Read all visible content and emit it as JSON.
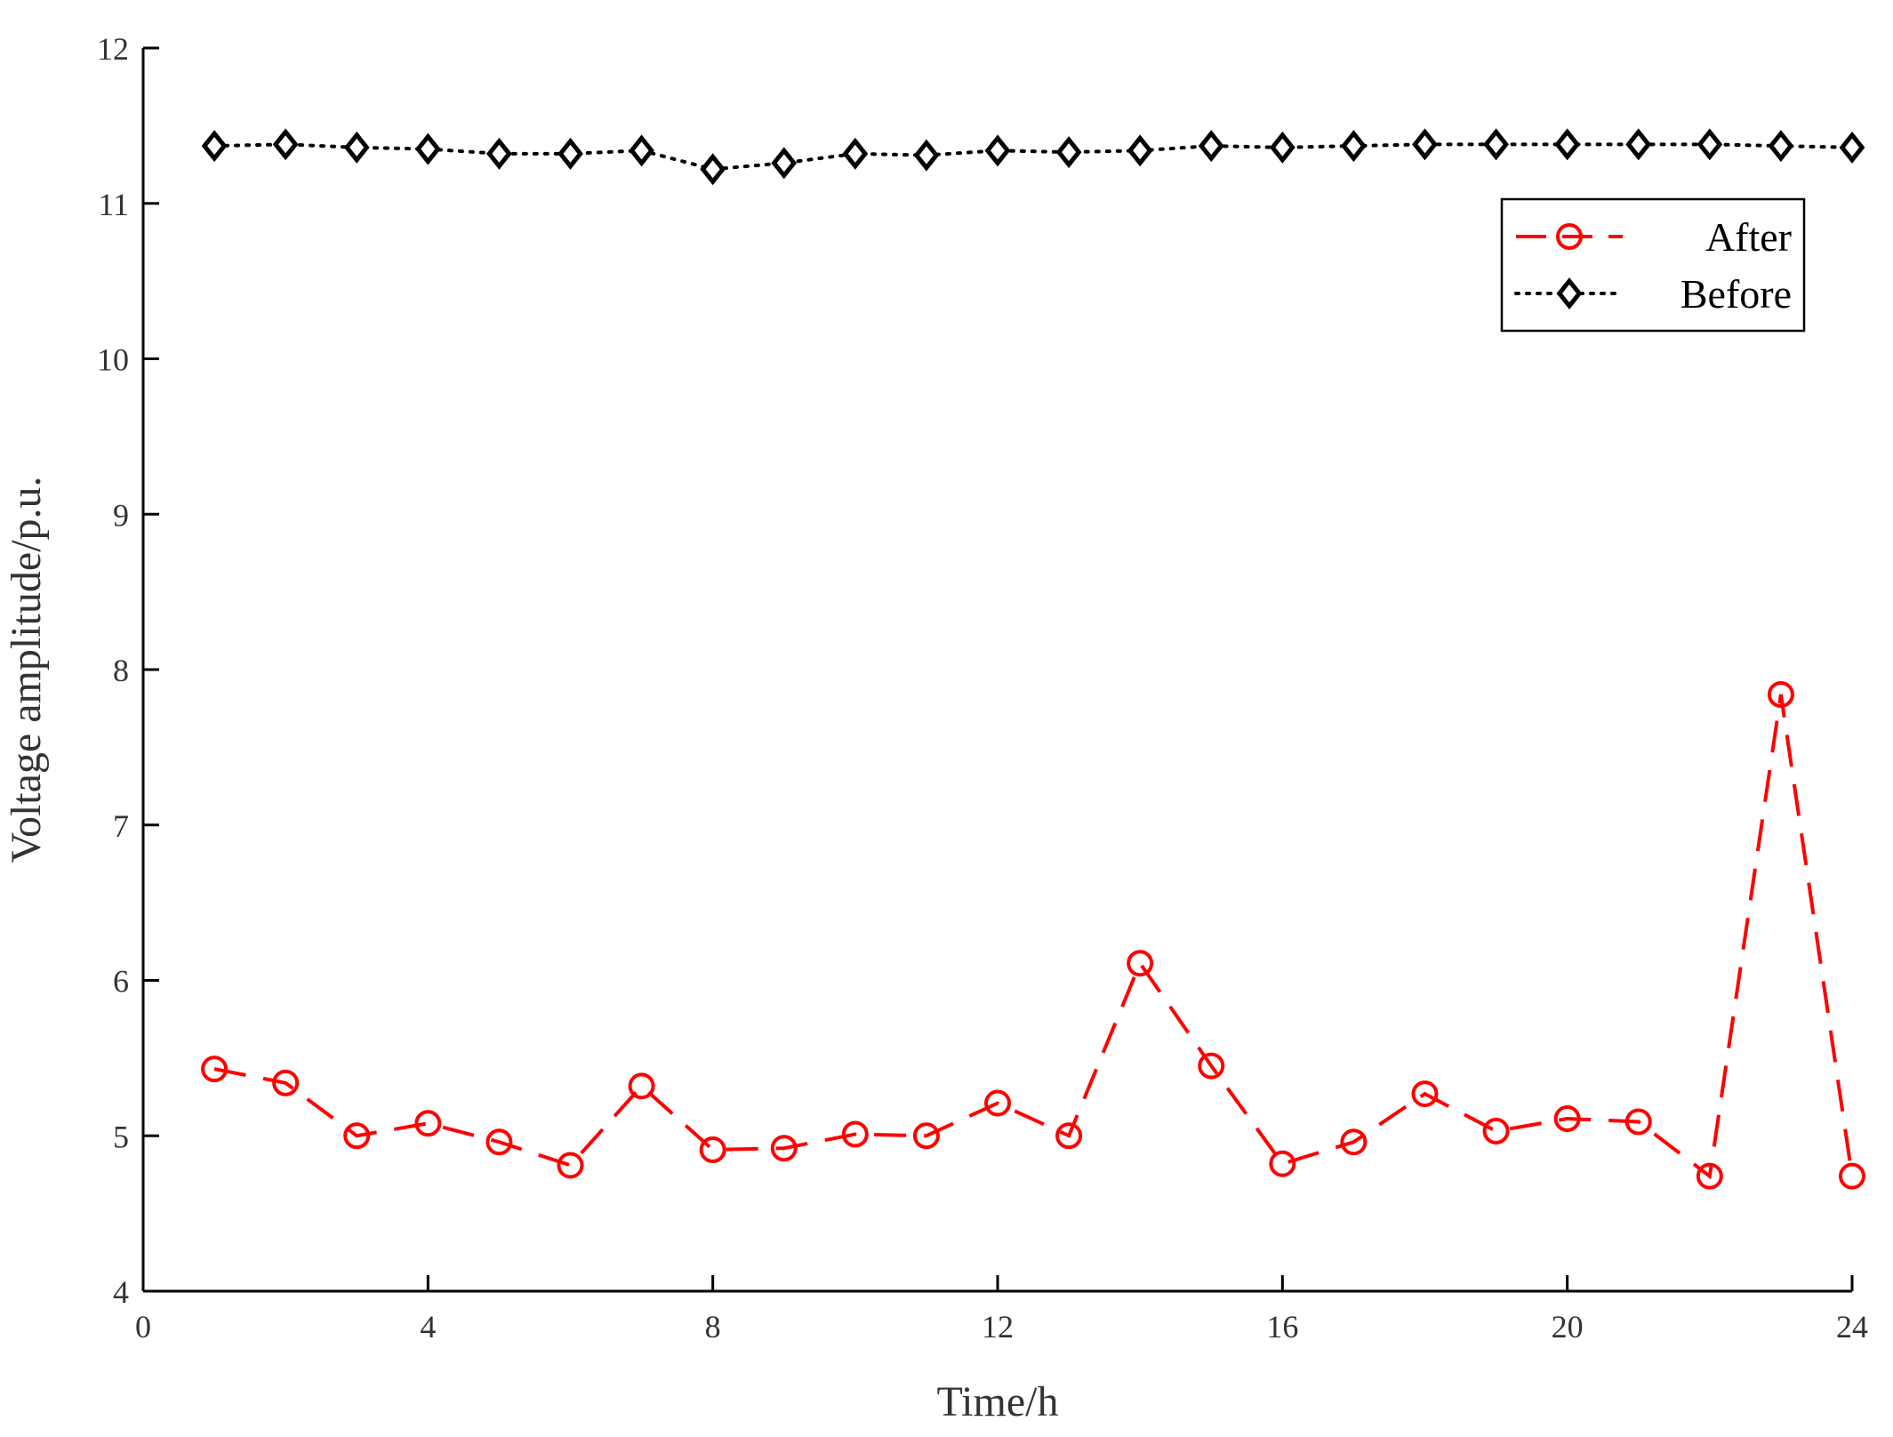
{
  "chart_data": {
    "type": "line",
    "xlabel": "Time/h",
    "ylabel": "Voltage amplitude/p.u.",
    "xlim": [
      0,
      24
    ],
    "ylim": [
      4,
      12
    ],
    "xticks": [
      0,
      4,
      8,
      12,
      16,
      20,
      24
    ],
    "yticks": [
      4,
      5,
      6,
      7,
      8,
      9,
      10,
      11,
      12
    ],
    "grid": false,
    "legend_position": "top-right",
    "x": [
      1,
      2,
      3,
      4,
      5,
      6,
      7,
      8,
      9,
      10,
      11,
      12,
      13,
      14,
      15,
      16,
      17,
      18,
      19,
      20,
      21,
      22,
      23,
      24
    ],
    "series": [
      {
        "name": "After",
        "color": "#ff0000",
        "line_style": "dashed",
        "marker": "circle",
        "values": [
          5.43,
          5.34,
          5.0,
          5.08,
          4.96,
          4.81,
          5.32,
          4.91,
          4.92,
          5.01,
          5.0,
          5.21,
          5.0,
          6.11,
          5.45,
          4.82,
          4.96,
          5.27,
          5.03,
          5.11,
          5.09,
          4.74,
          7.84,
          4.74
        ]
      },
      {
        "name": "Before",
        "color": "#000000",
        "line_style": "dotted",
        "marker": "diamond",
        "values": [
          11.37,
          11.38,
          11.36,
          11.35,
          11.32,
          11.32,
          11.34,
          11.22,
          11.26,
          11.32,
          11.31,
          11.34,
          11.33,
          11.34,
          11.37,
          11.36,
          11.37,
          11.38,
          11.38,
          11.38,
          11.38,
          11.38,
          11.37,
          11.36
        ]
      }
    ]
  }
}
